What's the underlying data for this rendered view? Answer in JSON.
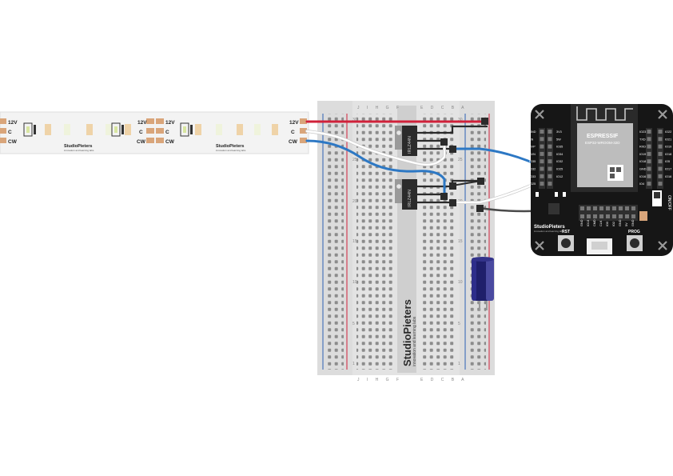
{
  "strip": {
    "pad_labels": [
      "12V",
      "C",
      "CW"
    ],
    "brand": "StudioPieters",
    "tagline": "innovation and learning labs"
  },
  "breadboard": {
    "col_letters_left": "J I H G F",
    "col_letters_right": "E D C B A",
    "row_numbers": [
      "30",
      "25",
      "20",
      "15",
      "10",
      "5",
      "1"
    ],
    "brand": "StudioPieters",
    "tagline": "innovation and learning labs"
  },
  "mosfets": [
    {
      "label": "IRLZ44N"
    },
    {
      "label": "IRLZ44N"
    }
  ],
  "esp32": {
    "module_brand": "ESPRESSIF",
    "module_model": "ESP32-WROOM-32D",
    "left_pins": [
      "GND",
      "EN",
      "SVP",
      "SVN",
      "IO35",
      "IO32",
      "IO33",
      "IO25",
      "IO26",
      "IO27",
      "IO14"
    ],
    "left_pins2": [
      "3V3",
      "5W",
      "IO35",
      "IO34",
      "IO32",
      "IO25",
      "IO12"
    ],
    "right_pins": [
      "IO23",
      "TXD",
      "RXD",
      "IO19",
      "IO18",
      "GND",
      "IO16",
      "IO4"
    ],
    "right_pins2": [
      "IO22",
      "IO21",
      "IO19",
      "IO18",
      "IO5",
      "IO17",
      "IO16"
    ],
    "bottom_pins": [
      "GND",
      "IO13",
      "CMD",
      "CLK",
      "IO0",
      "IO2",
      "GND",
      "5V",
      "GND"
    ],
    "brand": "StudioPieters",
    "tagline": "innovation and learning labs",
    "rst_label": "RST",
    "prog_label": "PROG",
    "switch_label": "ON/OFF"
  },
  "wires": {
    "power_color": "#d0213a",
    "signal_color": "#2d78c4",
    "white_color": "#ffffff",
    "gnd_color": "#4a4a4a"
  }
}
